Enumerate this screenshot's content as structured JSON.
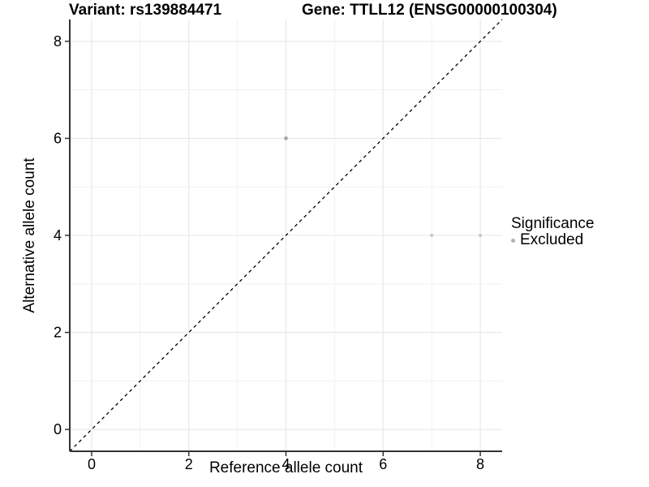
{
  "chart_data": {
    "type": "scatter",
    "title_left": "Variant: rs139884471",
    "title_right": "Gene: TTLL12 (ENSG00000100304)",
    "xlabel": "Reference allele count",
    "ylabel": "Alternative allele count",
    "xlim": [
      -0.45,
      8.45
    ],
    "ylim": [
      -0.45,
      8.45
    ],
    "x_ticks": [
      0,
      2,
      4,
      6,
      8
    ],
    "y_ticks": [
      0,
      2,
      4,
      6,
      8
    ],
    "minor_grid": [
      1,
      3,
      5,
      7
    ],
    "grid": true,
    "points": [
      {
        "x": 4,
        "y": 6,
        "color": "#a9a9a9",
        "r": 2.4,
        "significance": "Excluded"
      },
      {
        "x": 7,
        "y": 4,
        "color": "#c6c6c6",
        "r": 2.0,
        "significance": "Excluded"
      },
      {
        "x": 8,
        "y": 4,
        "color": "#c6c6c6",
        "r": 2.0,
        "significance": "Excluded"
      }
    ],
    "identity_line": {
      "style": "dashed",
      "color": "#000000",
      "from": [
        -0.45,
        -0.45
      ],
      "to": [
        8.45,
        8.45
      ]
    },
    "legend": {
      "title": "Significance",
      "position": "right",
      "items": [
        {
          "label": "Excluded",
          "color": "#b3b3b3"
        }
      ]
    },
    "colors": {
      "major_grid": "#e7e7e7",
      "minor_grid": "#f1f1f1",
      "axis_line": "#333333",
      "tick_mark": "#333333",
      "tick_label": "#000000"
    }
  }
}
